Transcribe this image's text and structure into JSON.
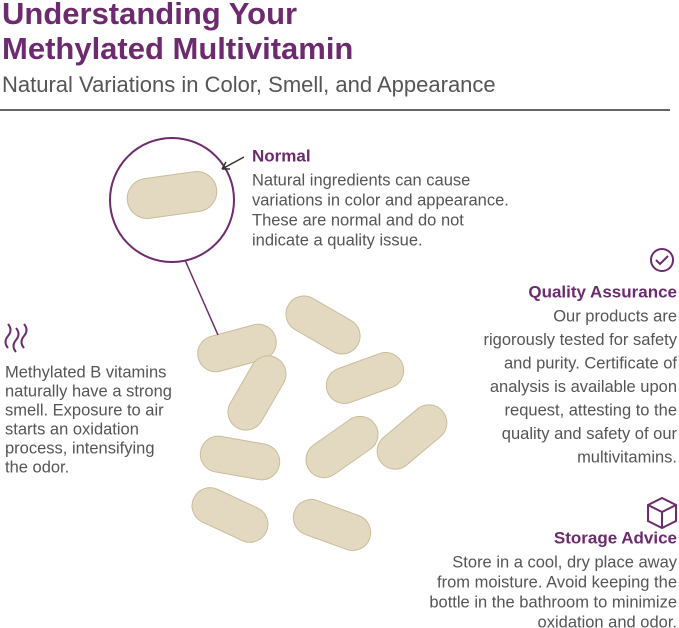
{
  "header": {
    "title_lines": [
      "Understanding Your",
      "Methylated Multivitamin"
    ],
    "subtitle": "Natural Variations in Color, Smell, and Appearance"
  },
  "sections": [
    {
      "heading": "Normal",
      "lines": [
        "Natural ingredients can cause",
        "variations in color and appearance.",
        "These are normal and do not",
        "indicate a quality issue."
      ]
    },
    {
      "heading": "Quality Assurance",
      "lines": [
        "Our products are",
        "rigorously tested for safety",
        "and purity. Certificate of",
        "analysis is available upon",
        "request, attesting to the",
        "quality and safety of our",
        "multivitamins."
      ]
    },
    {
      "lines": [
        "Methylated B vitamins",
        "naturally have a strong",
        "smell. Exposure to air",
        "starts an oxidation",
        "process, intensifying",
        "the odor."
      ]
    },
    {
      "heading": "Storage Advice",
      "lines": [
        "Store in a cool, dry place away",
        "from moisture. Avoid keeping the",
        "bottle in the bathroom to minimize",
        "oxidation and odor."
      ]
    }
  ]
}
